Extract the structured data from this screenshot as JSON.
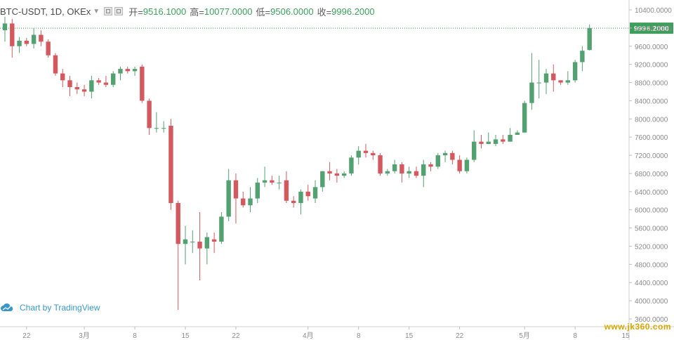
{
  "legend": {
    "symbol": "BTC-USDT, 1D, OKEx",
    "open_label": "开=",
    "open_value": "9516.1000",
    "high_label": "高=",
    "high_value": "10077.0000",
    "low_label": "低=",
    "low_value": "9506.0000",
    "close_label": "收=",
    "close_value": "9996.2000"
  },
  "watermark": {
    "text": "Chart by TradingView",
    "icon": "tradingview-cloud-icon"
  },
  "site_stamp": "www.jk360.com",
  "colors": {
    "up": "#53a070",
    "down": "#d3595e",
    "price_line": "#3e9e5b",
    "axis_text": "#8a8a8a",
    "grid": "#e8e8e8"
  },
  "chart_data": {
    "type": "candlestick",
    "y_axis": {
      "range": [
        3600,
        10400
      ],
      "ticks": [
        "3600.0000",
        "4000.0000",
        "4400.0000",
        "4800.0000",
        "5200.0000",
        "5600.0000",
        "6000.0000",
        "6400.0000",
        "6800.0000",
        "7200.0000",
        "7600.0000",
        "8000.0000",
        "8400.0000",
        "8800.0000",
        "9200.0000",
        "9600.0000",
        "10000.0000",
        "10400.0000"
      ],
      "ticks_num": [
        3600,
        4000,
        4400,
        4800,
        5200,
        5600,
        6000,
        6400,
        6800,
        7200,
        7600,
        8000,
        8400,
        8800,
        9200,
        9600,
        10000,
        10400
      ],
      "position": "right"
    },
    "x_axis": {
      "labels": [
        {
          "i": 3,
          "text": "22"
        },
        {
          "i": 11,
          "text": "3月"
        },
        {
          "i": 18,
          "text": "8"
        },
        {
          "i": 25,
          "text": "15"
        },
        {
          "i": 32,
          "text": "22"
        },
        {
          "i": 42,
          "text": "4月"
        },
        {
          "i": 49,
          "text": "8"
        },
        {
          "i": 56,
          "text": "15"
        },
        {
          "i": 63,
          "text": "22"
        },
        {
          "i": 72,
          "text": "5月"
        },
        {
          "i": 79,
          "text": "8"
        },
        {
          "i": 86,
          "text": "15"
        }
      ],
      "total_slots": 89
    },
    "last_price": "9996.2000",
    "last_price_num": 9996.2,
    "candles": [
      [
        9950,
        10250,
        9700,
        10100
      ],
      [
        10100,
        10200,
        9350,
        9600
      ],
      [
        9600,
        9800,
        9450,
        9720
      ],
      [
        9720,
        9780,
        9600,
        9650
      ],
      [
        9650,
        10000,
        9550,
        9850
      ],
      [
        9850,
        9950,
        9600,
        9700
      ],
      [
        9700,
        9750,
        9350,
        9400
      ],
      [
        9400,
        9450,
        8950,
        9000
      ],
      [
        9000,
        9100,
        8700,
        8850
      ],
      [
        8850,
        8950,
        8500,
        8700
      ],
      [
        8700,
        8800,
        8550,
        8650
      ],
      [
        8650,
        8750,
        8500,
        8600
      ],
      [
        8600,
        8950,
        8450,
        8850
      ],
      [
        8850,
        8900,
        8750,
        8800
      ],
      [
        8800,
        8950,
        8700,
        8750
      ],
      [
        8750,
        9050,
        8700,
        9000
      ],
      [
        9000,
        9150,
        8850,
        9100
      ],
      [
        9100,
        9150,
        9000,
        9050
      ],
      [
        9050,
        9150,
        8950,
        9100
      ],
      [
        9150,
        9200,
        8350,
        8400
      ],
      [
        8400,
        8450,
        7650,
        7800
      ],
      [
        7800,
        8150,
        7700,
        7800
      ],
      [
        7800,
        7950,
        7700,
        7800
      ],
      [
        7850,
        8000,
        6000,
        6150
      ],
      [
        6150,
        6200,
        3800,
        5250
      ],
      [
        5250,
        5650,
        4800,
        5350
      ],
      [
        5300,
        5550,
        5050,
        5300
      ],
      [
        5300,
        5950,
        4450,
        5150
      ],
      [
        5150,
        5500,
        4800,
        5400
      ],
      [
        5350,
        5500,
        5050,
        5300
      ],
      [
        5300,
        5950,
        5250,
        5850
      ],
      [
        5850,
        6900,
        5750,
        6650
      ],
      [
        6650,
        6800,
        5700,
        6250
      ],
      [
        6250,
        6400,
        6050,
        6100
      ],
      [
        6100,
        6500,
        5950,
        6250
      ],
      [
        6250,
        6700,
        6150,
        6600
      ],
      [
        6600,
        6950,
        6500,
        6650
      ],
      [
        6650,
        6750,
        6550,
        6600
      ],
      [
        6600,
        6750,
        6450,
        6600
      ],
      [
        6650,
        6850,
        6150,
        6200
      ],
      [
        6200,
        6300,
        6050,
        6150
      ],
      [
        6150,
        6450,
        5900,
        6400
      ],
      [
        6400,
        6550,
        6200,
        6300
      ],
      [
        6250,
        6650,
        6150,
        6500
      ],
      [
        6500,
        6850,
        6400,
        6850
      ],
      [
        6850,
        7050,
        6650,
        6800
      ],
      [
        6800,
        6900,
        6600,
        6750
      ],
      [
        6750,
        6850,
        6700,
        6800
      ],
      [
        6800,
        7200,
        6750,
        7150
      ],
      [
        7150,
        7400,
        7000,
        7300
      ],
      [
        7300,
        7450,
        7150,
        7250
      ],
      [
        7250,
        7300,
        7100,
        7200
      ],
      [
        7200,
        7250,
        6750,
        6800
      ],
      [
        6800,
        6900,
        6750,
        6850
      ],
      [
        6850,
        7100,
        6800,
        7000
      ],
      [
        7000,
        7050,
        6600,
        6800
      ],
      [
        6800,
        6950,
        6700,
        6850
      ],
      [
        6850,
        6950,
        6700,
        6750
      ],
      [
        6750,
        7100,
        6500,
        7000
      ],
      [
        7000,
        7050,
        6850,
        6950
      ],
      [
        6950,
        7250,
        6900,
        7200
      ],
      [
        7200,
        7300,
        7050,
        7250
      ],
      [
        7250,
        7300,
        7000,
        7100
      ],
      [
        7100,
        7200,
        6800,
        6850
      ],
      [
        6850,
        7150,
        6800,
        7100
      ],
      [
        7100,
        7750,
        7050,
        7500
      ],
      [
        7500,
        7650,
        7350,
        7450
      ],
      [
        7450,
        7700,
        7450,
        7500
      ],
      [
        7450,
        7650,
        7400,
        7550
      ],
      [
        7550,
        7650,
        7450,
        7500
      ],
      [
        7500,
        7800,
        7550,
        7650
      ],
      [
        7650,
        7750,
        7650,
        7700
      ],
      [
        7700,
        8400,
        7700,
        8350
      ],
      [
        8350,
        9450,
        8200,
        8800
      ],
      [
        8800,
        9300,
        8450,
        8800
      ],
      [
        8800,
        9100,
        8550,
        9000
      ],
      [
        9000,
        9200,
        8600,
        8850
      ],
      [
        8850,
        8850,
        8750,
        8800
      ],
      [
        8800,
        9050,
        8750,
        8850
      ],
      [
        8850,
        9300,
        8800,
        9250
      ],
      [
        9250,
        9600,
        9050,
        9500
      ],
      [
        9516.1,
        10077,
        9506,
        9996.2
      ]
    ]
  }
}
